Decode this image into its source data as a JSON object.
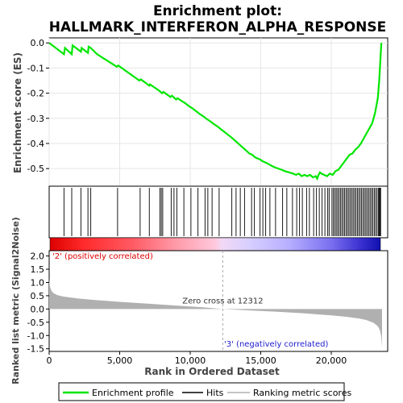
{
  "chart_data": {
    "type": "line",
    "title_line1": "Enrichment plot:",
    "title_line2": "HALLMARK_INTERFERON_ALPHA_RESPONSE",
    "xlabel": "Rank in Ordered Dataset",
    "es_ylabel": "Enrichment score (ES)",
    "metric_ylabel": "Ranked list metric (Signal2Noise)",
    "xlim": [
      0,
      24000
    ],
    "x_ticks": [
      0,
      5000,
      10000,
      15000,
      20000
    ],
    "x_tick_labels": [
      "0",
      "5,000",
      "10,000",
      "15,000",
      "20,000"
    ],
    "es_ylim": [
      -0.57,
      0.02
    ],
    "es_ticks": [
      0.0,
      -0.1,
      -0.2,
      -0.3,
      -0.4,
      -0.5
    ],
    "es_tick_labels": [
      "0.0",
      "-0.1",
      "-0.2",
      "-0.3",
      "-0.4",
      "-0.5"
    ],
    "metric_ylim": [
      -1.6,
      2.2
    ],
    "metric_ticks": [
      2.0,
      1.5,
      1.0,
      0.5,
      0.0,
      -0.5,
      -1.0,
      -1.5
    ],
    "metric_tick_labels": [
      "2.0",
      "1.5",
      "1.0",
      "0.5",
      "0.0",
      "-0.5",
      "-1.0",
      "-1.5"
    ],
    "n_genes": 23600,
    "zero_cross_rank": 12312,
    "zero_cross_label": "Zero cross at 12312",
    "pos_label": "'2' (positively correlated)",
    "neg_label": "'3' (negatively correlated)",
    "es_curve": {
      "name": "Enrichment profile",
      "x": [
        0,
        1050,
        1120,
        1600,
        1660,
        2250,
        2300,
        2750,
        2800,
        2950,
        3400,
        4800,
        4900,
        6400,
        6500,
        7100,
        7150,
        7800,
        7900,
        8000,
        8100,
        8600,
        8700,
        9000,
        9100,
        9500,
        9600,
        10000,
        10100,
        10500,
        10600,
        11000,
        11100,
        11500,
        11600,
        12000,
        12100,
        12900,
        13000,
        13200,
        13400,
        13600,
        13800,
        14200,
        14400,
        14600,
        14800,
        15000,
        15100,
        15300,
        15500,
        15800,
        16000,
        16500,
        16700,
        17000,
        17300,
        17500,
        17700,
        17900,
        18100,
        18300,
        18500,
        18700,
        18900,
        19000,
        19100,
        19200,
        19300,
        19500,
        19700,
        19900,
        20100,
        20300,
        20500,
        20700,
        20900,
        21100,
        21300,
        21500,
        21700,
        21900,
        22100,
        22300,
        22500,
        22700,
        22900,
        23000,
        23100,
        23200,
        23300,
        23400,
        23450,
        23500,
        23550
      ],
      "y": [
        0.0,
        -0.045,
        -0.02,
        -0.045,
        -0.01,
        -0.035,
        -0.02,
        -0.04,
        -0.015,
        -0.02,
        -0.045,
        -0.095,
        -0.09,
        -0.15,
        -0.145,
        -0.17,
        -0.165,
        -0.19,
        -0.195,
        -0.2,
        -0.195,
        -0.215,
        -0.21,
        -0.225,
        -0.22,
        -0.235,
        -0.238,
        -0.255,
        -0.258,
        -0.275,
        -0.28,
        -0.295,
        -0.3,
        -0.315,
        -0.32,
        -0.335,
        -0.34,
        -0.375,
        -0.38,
        -0.39,
        -0.4,
        -0.41,
        -0.42,
        -0.44,
        -0.445,
        -0.455,
        -0.46,
        -0.465,
        -0.47,
        -0.475,
        -0.48,
        -0.49,
        -0.495,
        -0.505,
        -0.51,
        -0.515,
        -0.52,
        -0.525,
        -0.52,
        -0.53,
        -0.525,
        -0.53,
        -0.525,
        -0.535,
        -0.53,
        -0.54,
        -0.525,
        -0.515,
        -0.52,
        -0.525,
        -0.53,
        -0.52,
        -0.525,
        -0.51,
        -0.505,
        -0.49,
        -0.475,
        -0.46,
        -0.445,
        -0.44,
        -0.425,
        -0.415,
        -0.4,
        -0.38,
        -0.36,
        -0.34,
        -0.32,
        -0.3,
        -0.28,
        -0.25,
        -0.22,
        -0.15,
        -0.1,
        -0.05,
        0.0
      ]
    },
    "hits": [
      1050,
      1600,
      2250,
      2750,
      2950,
      4850,
      6450,
      7100,
      7850,
      7950,
      8050,
      8650,
      8850,
      9050,
      9550,
      10050,
      10550,
      11050,
      11250,
      11550,
      12050,
      12950,
      13250,
      13550,
      13850,
      14350,
      14550,
      14950,
      15150,
      15350,
      15650,
      16050,
      16550,
      16850,
      17250,
      17550,
      17750,
      17950,
      18250,
      18450,
      18750,
      18950,
      19150,
      19350,
      19550,
      19750,
      19850,
      20050,
      20150,
      20250,
      20350,
      20450,
      20550,
      20650,
      20750,
      20850,
      20950,
      21050,
      21150,
      21250,
      21350,
      21450,
      21550,
      21650,
      21750,
      21850,
      21950,
      22050,
      22150,
      22250,
      22350,
      22450,
      22550,
      22650,
      22750,
      22850,
      22950,
      23050,
      23150,
      23250,
      23350,
      23400,
      23450,
      23500
    ],
    "metric_curve": {
      "x": [
        0,
        50,
        150,
        300,
        600,
        1000,
        2000,
        3000,
        5000,
        7000,
        9000,
        11000,
        12312,
        14000,
        16000,
        18000,
        19000,
        20000,
        21000,
        22000,
        22500,
        23000,
        23300,
        23450,
        23550,
        23600
      ],
      "y": [
        1.15,
        0.85,
        0.7,
        0.6,
        0.52,
        0.47,
        0.4,
        0.35,
        0.27,
        0.2,
        0.13,
        0.06,
        0.0,
        -0.05,
        -0.1,
        -0.16,
        -0.2,
        -0.24,
        -0.29,
        -0.36,
        -0.42,
        -0.52,
        -0.65,
        -0.8,
        -1.05,
        -1.45
      ]
    },
    "colors": {
      "es_line": "#00e600",
      "hits": "#000000",
      "metric_fill": "#b0b0b0",
      "pos_text": "#e00000",
      "neg_text": "#2020d0",
      "grid": "#e6e6e6",
      "zero_line": "#aaaaaa"
    },
    "legend": {
      "placement": "bottom",
      "items": [
        "Enrichment profile",
        "Hits",
        "Ranking metric scores"
      ]
    }
  }
}
